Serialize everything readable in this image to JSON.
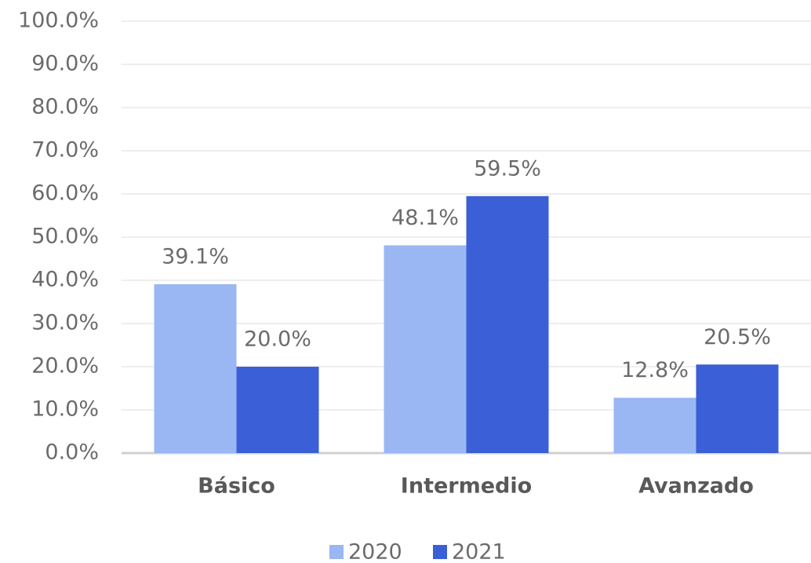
{
  "chart_data": {
    "type": "bar",
    "categories": [
      "Básico",
      "Intermedio",
      "Avanzado"
    ],
    "series": [
      {
        "name": "2020",
        "color": "#9ab7f4",
        "values": [
          39.1,
          48.1,
          12.8
        ],
        "value_labels": [
          "39.1%",
          "48.1%",
          "12.8%"
        ]
      },
      {
        "name": "2021",
        "color": "#3a5fd6",
        "values": [
          20.0,
          59.5,
          20.5
        ],
        "value_labels": [
          "20.0%",
          "59.5%",
          "20.5%"
        ]
      }
    ],
    "ylim": [
      0,
      100
    ],
    "yticks": [
      {
        "value": 0,
        "label": "0.0%"
      },
      {
        "value": 10,
        "label": "10.0%"
      },
      {
        "value": 20,
        "label": "20.0%"
      },
      {
        "value": 30,
        "label": "30.0%"
      },
      {
        "value": 40,
        "label": "40.0%"
      },
      {
        "value": 50,
        "label": "50.0%"
      },
      {
        "value": 60,
        "label": "60.0%"
      },
      {
        "value": 70,
        "label": "70.0%"
      },
      {
        "value": 80,
        "label": "80.0%"
      },
      {
        "value": 90,
        "label": "90.0%"
      },
      {
        "value": 100,
        "label": "100.0%"
      }
    ],
    "grid": true,
    "legend": "bottom"
  }
}
